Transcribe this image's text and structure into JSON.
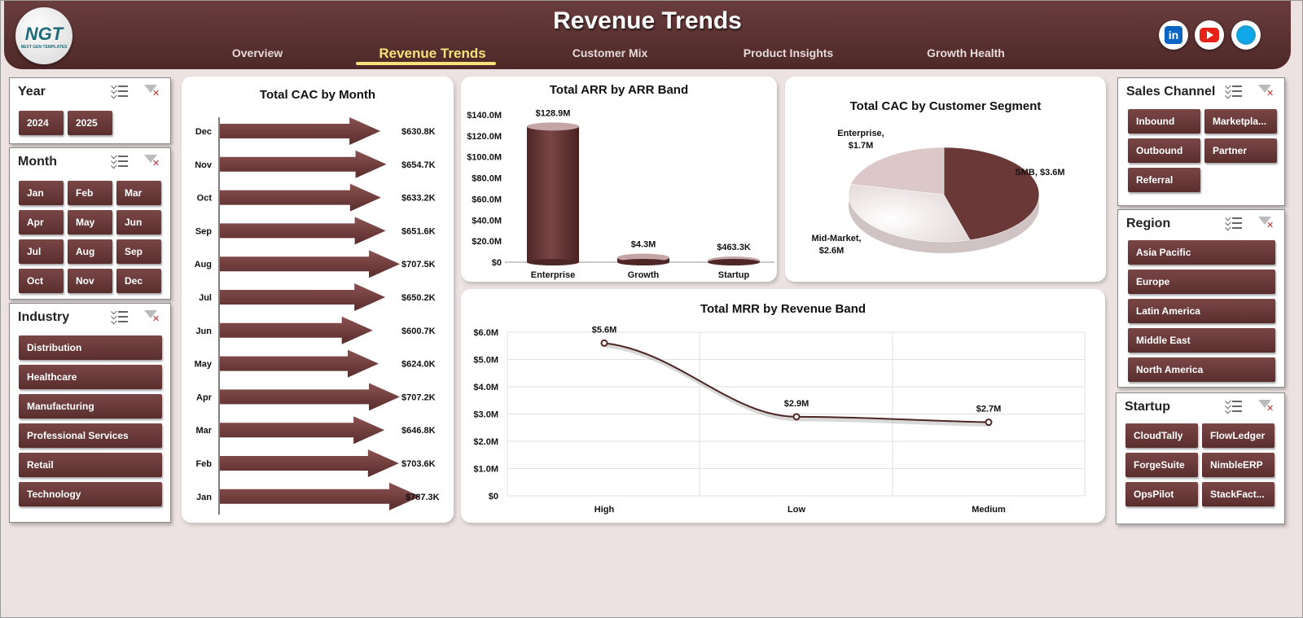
{
  "header": {
    "title": "Revenue Trends",
    "logo_text": "NGT",
    "logo_subtext": "NEXT GEN TEMPLATES",
    "tabs": [
      {
        "label": "Overview",
        "active": false
      },
      {
        "label": "Revenue Trends",
        "active": true
      },
      {
        "label": "Customer Mix",
        "active": false
      },
      {
        "label": "Product Insights",
        "active": false
      },
      {
        "label": "Growth Health",
        "active": false
      }
    ],
    "social": [
      {
        "icon": "linkedin-icon",
        "glyph": "in"
      },
      {
        "icon": "youtube-icon",
        "glyph": ""
      },
      {
        "icon": "globe-icon",
        "glyph": "🌐"
      }
    ],
    "accent_color": "#f5e27a",
    "brand_color": "#5a2e2e"
  },
  "slicers": {
    "year": {
      "title": "Year",
      "items": [
        "2024",
        "2025"
      ]
    },
    "month": {
      "title": "Month",
      "items": [
        "Jan",
        "Feb",
        "Mar",
        "Apr",
        "May",
        "Jun",
        "Jul",
        "Aug",
        "Sep",
        "Oct",
        "Nov",
        "Dec"
      ]
    },
    "industry": {
      "title": "Industry",
      "items": [
        "Distribution",
        "Healthcare",
        "Manufacturing",
        "Professional Services",
        "Retail",
        "Technology"
      ]
    },
    "sales_channel": {
      "title": "Sales Channel",
      "items": [
        "Inbound",
        "Marketpla...",
        "Outbound",
        "Partner",
        "Referral"
      ]
    },
    "region": {
      "title": "Region",
      "items": [
        "Asia Pacific",
        "Europe",
        "Latin America",
        "Middle East",
        "North America"
      ]
    },
    "startup": {
      "title": "Startup",
      "items": [
        "CloudTally",
        "FlowLedger",
        "ForgeSuite",
        "NimbleERP",
        "OpsPilot",
        "StackFact..."
      ]
    }
  },
  "chart_data": [
    {
      "id": "cac-by-month",
      "type": "bar",
      "orientation": "horizontal",
      "title": "Total CAC by Month",
      "categories": [
        "Dec",
        "Nov",
        "Oct",
        "Sep",
        "Aug",
        "Jul",
        "Jun",
        "May",
        "Apr",
        "Mar",
        "Feb",
        "Jan"
      ],
      "values": [
        630.8,
        654.7,
        633.2,
        651.6,
        707.5,
        650.2,
        600.7,
        624.0,
        707.2,
        646.8,
        703.6,
        787.3
      ],
      "labels": [
        "$630.8K",
        "$654.7K",
        "$633.2K",
        "$651.6K",
        "$707.5K",
        "$650.2K",
        "$600.7K",
        "$624.0K",
        "$707.2K",
        "$646.8K",
        "$703.6K",
        "$787.3K"
      ],
      "unit": "K"
    },
    {
      "id": "arr-by-band",
      "type": "bar",
      "title": "Total ARR by ARR Band",
      "categories": [
        "Enterprise",
        "Growth",
        "Startup"
      ],
      "values": [
        128.9,
        4.3,
        0.4633
      ],
      "labels": [
        "$128.9M",
        "$4.3M",
        "$463.3K"
      ],
      "ylim": [
        0,
        140
      ],
      "yticks": [
        "$0",
        "$20.0M",
        "$40.0M",
        "$60.0M",
        "$80.0M",
        "$100.0M",
        "$120.0M",
        "$140.0M"
      ]
    },
    {
      "id": "cac-by-segment",
      "type": "pie",
      "title": "Total CAC by Customer Segment",
      "categories": [
        "SMB",
        "Mid-Market",
        "Enterprise"
      ],
      "values": [
        3.6,
        2.6,
        1.7
      ],
      "labels": [
        "SMB, $3.6M",
        "Mid-Market,",
        "Enterprise,"
      ],
      "sublabels": [
        "",
        "$2.6M",
        "$1.7M"
      ],
      "colors": [
        "#6b3838",
        "#f3ecec",
        "#dcc8c8"
      ]
    },
    {
      "id": "mrr-by-band",
      "type": "line",
      "title": "Total MRR by Revenue  Band",
      "categories": [
        "High",
        "Low",
        "Medium"
      ],
      "values": [
        5.6,
        2.9,
        2.7
      ],
      "labels": [
        "$5.6M",
        "$2.9M",
        "$2.7M"
      ],
      "ylim": [
        0,
        6
      ],
      "yticks": [
        "$0",
        "$1.0M",
        "$2.0M",
        "$3.0M",
        "$4.0M",
        "$5.0M",
        "$6.0M"
      ],
      "grid": true
    }
  ]
}
